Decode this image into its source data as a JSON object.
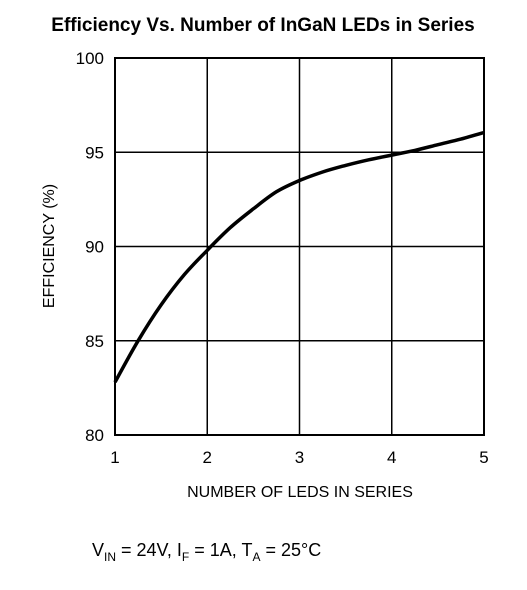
{
  "chart_data": {
    "type": "line",
    "title": "Efficiency Vs. Number of InGaN LEDs in Series",
    "xlabel": "NUMBER OF LEDS IN SERIES",
    "ylabel": "EFFICIENCY (%)",
    "xlim": [
      1,
      5
    ],
    "ylim": [
      80,
      100
    ],
    "x_ticks": [
      "1",
      "2",
      "3",
      "4",
      "5"
    ],
    "y_ticks": [
      "80",
      "85",
      "90",
      "95",
      "100"
    ],
    "grid": true,
    "series": [
      {
        "x": [
          1.0,
          1.25,
          1.5,
          1.75,
          2.0,
          2.25,
          2.5,
          2.75,
          3.0,
          3.25,
          3.5,
          3.75,
          4.0,
          4.25,
          4.5,
          4.75,
          5.0
        ],
        "y": [
          82.8,
          85.0,
          86.9,
          88.5,
          89.8,
          91.0,
          92.0,
          92.9,
          93.5,
          93.95,
          94.3,
          94.6,
          94.85,
          95.1,
          95.4,
          95.7,
          96.05
        ]
      }
    ],
    "conditions": {
      "v_main": "V",
      "v_sub": "IN",
      "v_value": " = 24V, ",
      "i_main": "I",
      "i_sub": "F",
      "i_value": " = 1A, ",
      "t_main": "T",
      "t_sub": "A",
      "t_value": " = 25°C"
    }
  }
}
